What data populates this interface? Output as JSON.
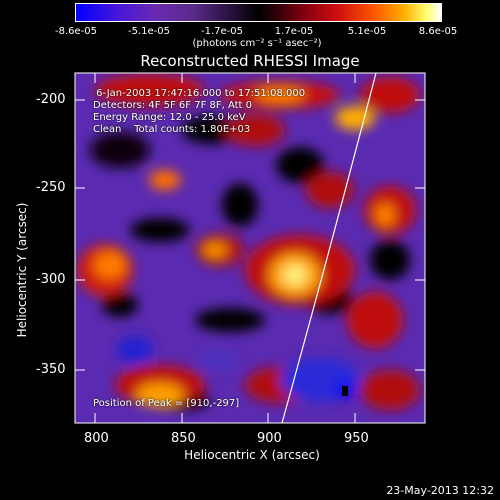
{
  "colorbar": {
    "tick_labels": [
      "-8.6e-05",
      "-5.1e-05",
      "-1.7e-05",
      "1.7e-05",
      "5.1e-05",
      "8.6e-05"
    ],
    "unit": "(photons cm⁻² s⁻¹ asec⁻²)"
  },
  "plot": {
    "title": "Reconstructed RHESSI Image",
    "xlabel": "Heliocentric X (arcsec)",
    "ylabel": "Heliocentric Y (arcsec)",
    "xticks": [
      "800",
      "850",
      "900",
      "950"
    ],
    "yticks": [
      "-200",
      "-250",
      "-300",
      "-350"
    ],
    "info_lines": [
      " 6-Jan-2003 17:47:16.000 to 17:51:08.000",
      "Detectors: 4F 5F 6F 7F 8F, Att 0",
      "Energy Range: 12.0 - 25.0 keV",
      "Clean    Total counts: 1.80E+03"
    ],
    "peak_label": "Position of Peak = [910,-297]"
  },
  "footer": {
    "timestamp": "23-May-2013 12:32"
  },
  "colors": {
    "background": "#000000",
    "axis": "#ffffff",
    "limb": "#ffffff"
  }
}
